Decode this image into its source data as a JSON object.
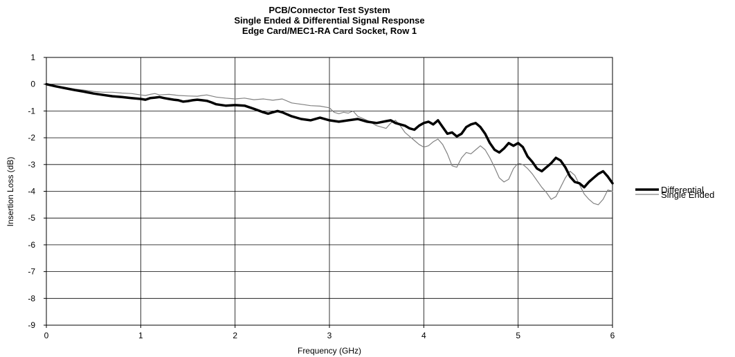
{
  "chart_data": {
    "type": "line",
    "title": "PCB/Connector Test System",
    "subtitle": [
      "Single Ended & Differential Signal Response",
      "Edge Card/MEC1-RA Card Socket, Row 1"
    ],
    "xlabel": "Frequency (GHz)",
    "ylabel": "Insertion Loss (dB)",
    "xlim": [
      0,
      6
    ],
    "ylim": [
      -9,
      1
    ],
    "xticks": [
      0,
      1,
      2,
      3,
      4,
      5,
      6
    ],
    "yticks": [
      1,
      0,
      -1,
      -2,
      -3,
      -4,
      -5,
      -6,
      -7,
      -8,
      -9
    ],
    "grid": true,
    "legend_position": "right",
    "series": [
      {
        "name": "Differential",
        "color": "#000000",
        "style": "thick",
        "x": [
          0,
          0.1,
          0.2,
          0.3,
          0.4,
          0.5,
          0.6,
          0.7,
          0.8,
          0.9,
          1.0,
          1.05,
          1.1,
          1.15,
          1.2,
          1.25,
          1.3,
          1.35,
          1.4,
          1.45,
          1.5,
          1.55,
          1.6,
          1.65,
          1.7,
          1.75,
          1.8,
          1.9,
          2.0,
          2.1,
          2.2,
          2.3,
          2.35,
          2.4,
          2.45,
          2.5,
          2.6,
          2.7,
          2.8,
          2.9,
          3.0,
          3.1,
          3.2,
          3.3,
          3.4,
          3.5,
          3.6,
          3.65,
          3.7,
          3.75,
          3.8,
          3.85,
          3.9,
          3.95,
          4.0,
          4.05,
          4.1,
          4.15,
          4.2,
          4.25,
          4.3,
          4.35,
          4.4,
          4.45,
          4.5,
          4.55,
          4.6,
          4.65,
          4.7,
          4.75,
          4.8,
          4.85,
          4.9,
          4.95,
          5.0,
          5.05,
          5.1,
          5.15,
          5.2,
          5.25,
          5.3,
          5.35,
          5.4,
          5.45,
          5.5,
          5.55,
          5.6,
          5.65,
          5.7,
          5.75,
          5.8,
          5.85,
          5.9,
          5.95,
          6.0
        ],
        "values": [
          0,
          -0.08,
          -0.15,
          -0.22,
          -0.28,
          -0.35,
          -0.4,
          -0.45,
          -0.48,
          -0.52,
          -0.55,
          -0.58,
          -0.52,
          -0.5,
          -0.48,
          -0.52,
          -0.55,
          -0.58,
          -0.6,
          -0.65,
          -0.63,
          -0.6,
          -0.58,
          -0.6,
          -0.62,
          -0.68,
          -0.75,
          -0.8,
          -0.78,
          -0.8,
          -0.92,
          -1.05,
          -1.1,
          -1.05,
          -1.0,
          -1.05,
          -1.2,
          -1.3,
          -1.35,
          -1.25,
          -1.35,
          -1.4,
          -1.35,
          -1.3,
          -1.4,
          -1.45,
          -1.38,
          -1.35,
          -1.45,
          -1.5,
          -1.55,
          -1.65,
          -1.7,
          -1.55,
          -1.45,
          -1.4,
          -1.5,
          -1.35,
          -1.6,
          -1.85,
          -1.8,
          -1.95,
          -1.85,
          -1.6,
          -1.5,
          -1.45,
          -1.6,
          -1.85,
          -2.2,
          -2.45,
          -2.55,
          -2.4,
          -2.2,
          -2.3,
          -2.2,
          -2.35,
          -2.7,
          -2.9,
          -3.15,
          -3.25,
          -3.1,
          -2.95,
          -2.75,
          -2.85,
          -3.1,
          -3.45,
          -3.65,
          -3.7,
          -3.85,
          -3.65,
          -3.5,
          -3.35,
          -3.25,
          -3.45,
          -3.7
        ]
      },
      {
        "name": "Single Ended",
        "color": "#808080",
        "style": "thin",
        "x": [
          0,
          0.1,
          0.2,
          0.3,
          0.4,
          0.5,
          0.6,
          0.7,
          0.8,
          0.9,
          1.0,
          1.05,
          1.1,
          1.15,
          1.2,
          1.3,
          1.4,
          1.5,
          1.6,
          1.65,
          1.7,
          1.8,
          1.9,
          2.0,
          2.1,
          2.2,
          2.3,
          2.4,
          2.5,
          2.6,
          2.7,
          2.8,
          2.9,
          3.0,
          3.05,
          3.1,
          3.15,
          3.2,
          3.25,
          3.3,
          3.4,
          3.45,
          3.5,
          3.55,
          3.6,
          3.65,
          3.7,
          3.75,
          3.8,
          3.85,
          3.9,
          3.95,
          4.0,
          4.05,
          4.1,
          4.15,
          4.2,
          4.25,
          4.3,
          4.35,
          4.4,
          4.45,
          4.5,
          4.55,
          4.6,
          4.65,
          4.7,
          4.75,
          4.8,
          4.85,
          4.9,
          4.95,
          5.0,
          5.05,
          5.1,
          5.15,
          5.2,
          5.25,
          5.3,
          5.35,
          5.4,
          5.45,
          5.5,
          5.55,
          5.6,
          5.65,
          5.7,
          5.75,
          5.8,
          5.85,
          5.9,
          5.95,
          6.0
        ],
        "values": [
          0,
          -0.07,
          -0.12,
          -0.18,
          -0.22,
          -0.27,
          -0.3,
          -0.3,
          -0.33,
          -0.35,
          -0.4,
          -0.42,
          -0.38,
          -0.35,
          -0.4,
          -0.38,
          -0.42,
          -0.44,
          -0.45,
          -0.42,
          -0.4,
          -0.48,
          -0.52,
          -0.55,
          -0.52,
          -0.58,
          -0.55,
          -0.6,
          -0.55,
          -0.7,
          -0.75,
          -0.8,
          -0.82,
          -0.88,
          -1.05,
          -1.1,
          -1.05,
          -1.08,
          -1.0,
          -1.2,
          -1.35,
          -1.45,
          -1.55,
          -1.6,
          -1.65,
          -1.45,
          -1.35,
          -1.55,
          -1.8,
          -1.95,
          -2.1,
          -2.25,
          -2.35,
          -2.3,
          -2.15,
          -2.05,
          -2.25,
          -2.6,
          -3.05,
          -3.1,
          -2.75,
          -2.55,
          -2.6,
          -2.45,
          -2.3,
          -2.45,
          -2.75,
          -3.1,
          -3.5,
          -3.65,
          -3.55,
          -3.15,
          -2.95,
          -3.0,
          -3.15,
          -3.35,
          -3.6,
          -3.85,
          -4.05,
          -4.3,
          -4.2,
          -3.85,
          -3.5,
          -3.25,
          -3.4,
          -3.75,
          -4.1,
          -4.3,
          -4.45,
          -4.5,
          -4.3,
          -3.95,
          -4.0
        ]
      }
    ]
  }
}
